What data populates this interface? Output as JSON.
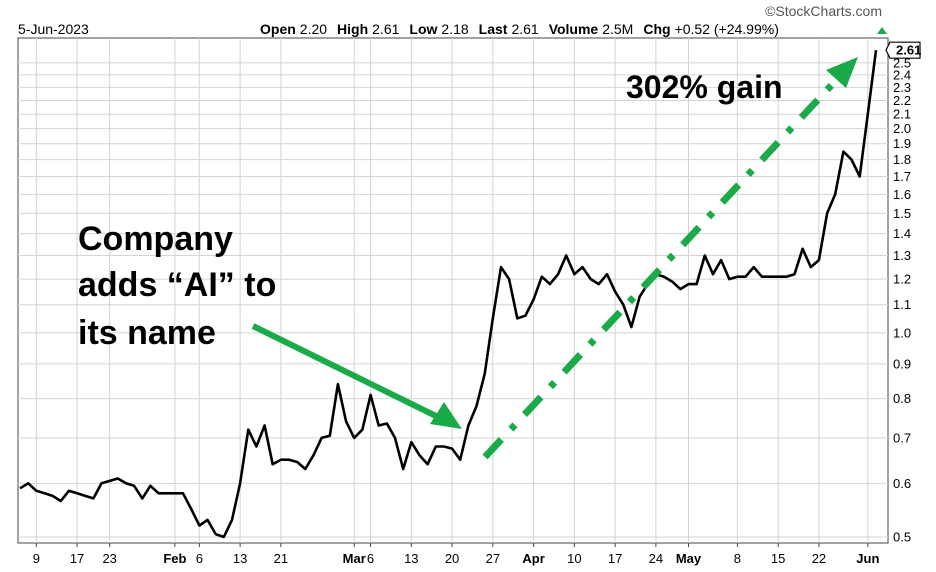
{
  "header": {
    "date": "5-Jun-2023",
    "stats": [
      {
        "label": "Open",
        "value": "2.20"
      },
      {
        "label": "High",
        "value": "2.61"
      },
      {
        "label": "Low",
        "value": "2.18"
      },
      {
        "label": "Last",
        "value": "2.61"
      },
      {
        "label": "Volume",
        "value": "2.5M"
      },
      {
        "label": "Chg",
        "value": "+0.52 (+24.99%)"
      }
    ],
    "watermark": "©StockCharts.com",
    "up_arrow_icon": "triangle-up-icon"
  },
  "annotations": {
    "left_text": [
      "Company",
      "adds “AI” to",
      "its name"
    ],
    "right_text": "302% gain",
    "arrow_color": "#1aab48"
  },
  "chart_data": {
    "type": "line",
    "y_scale": "log",
    "ylim": [
      0.49,
      2.72
    ],
    "y_ticks": [
      "0.5",
      "0.6",
      "0.7",
      "0.8",
      "0.9",
      "1.0",
      "1.1",
      "1.2",
      "1.3",
      "1.4",
      "1.5",
      "1.6",
      "1.7",
      "1.8",
      "1.9",
      "2.0",
      "2.1",
      "2.2",
      "2.3",
      "2.4",
      "2.5"
    ],
    "last_value_label": "2.61",
    "x_ticks": [
      {
        "label": "9",
        "i": 2,
        "bold": false
      },
      {
        "label": "17",
        "i": 7,
        "bold": false
      },
      {
        "label": "23",
        "i": 11,
        "bold": false
      },
      {
        "label": "Feb",
        "i": 19,
        "bold": true
      },
      {
        "label": "6",
        "i": 22,
        "bold": false
      },
      {
        "label": "13",
        "i": 27,
        "bold": false
      },
      {
        "label": "21",
        "i": 32,
        "bold": false
      },
      {
        "label": "Mar",
        "i": 41,
        "bold": true
      },
      {
        "label": "6",
        "i": 43,
        "bold": false
      },
      {
        "label": "13",
        "i": 48,
        "bold": false
      },
      {
        "label": "20",
        "i": 53,
        "bold": false
      },
      {
        "label": "27",
        "i": 58,
        "bold": false
      },
      {
        "label": "Apr",
        "i": 63,
        "bold": true
      },
      {
        "label": "10",
        "i": 68,
        "bold": false
      },
      {
        "label": "17",
        "i": 73,
        "bold": false
      },
      {
        "label": "24",
        "i": 78,
        "bold": false
      },
      {
        "label": "May",
        "i": 82,
        "bold": true
      },
      {
        "label": "8",
        "i": 88,
        "bold": false
      },
      {
        "label": "15",
        "i": 93,
        "bold": false
      },
      {
        "label": "22",
        "i": 98,
        "bold": false
      },
      {
        "label": "Jun",
        "i": 104,
        "bold": true
      }
    ],
    "series": [
      {
        "values": [
          0.59,
          0.6,
          0.585,
          0.58,
          0.575,
          0.565,
          0.585,
          0.58,
          0.575,
          0.57,
          0.6,
          0.605,
          0.61,
          0.6,
          0.595,
          0.57,
          0.595,
          0.58,
          0.58,
          0.58,
          0.58,
          0.55,
          0.52,
          0.53,
          0.505,
          0.5,
          0.53,
          0.6,
          0.72,
          0.68,
          0.73,
          0.64,
          0.65,
          0.65,
          0.645,
          0.63,
          0.66,
          0.7,
          0.705,
          0.84,
          0.74,
          0.7,
          0.72,
          0.81,
          0.73,
          0.735,
          0.7,
          0.63,
          0.69,
          0.66,
          0.64,
          0.68,
          0.68,
          0.675,
          0.65,
          0.73,
          0.78,
          0.87,
          1.05,
          1.25,
          1.2,
          1.05,
          1.06,
          1.12,
          1.21,
          1.18,
          1.22,
          1.3,
          1.22,
          1.25,
          1.2,
          1.18,
          1.22,
          1.15,
          1.1,
          1.02,
          1.13,
          1.18,
          1.22,
          1.21,
          1.19,
          1.16,
          1.18,
          1.18,
          1.3,
          1.22,
          1.28,
          1.2,
          1.21,
          1.21,
          1.25,
          1.21,
          1.21,
          1.21,
          1.21,
          1.22,
          1.33,
          1.25,
          1.28,
          1.5,
          1.6,
          1.85,
          1.8,
          1.7,
          2.1,
          2.61
        ]
      }
    ]
  }
}
